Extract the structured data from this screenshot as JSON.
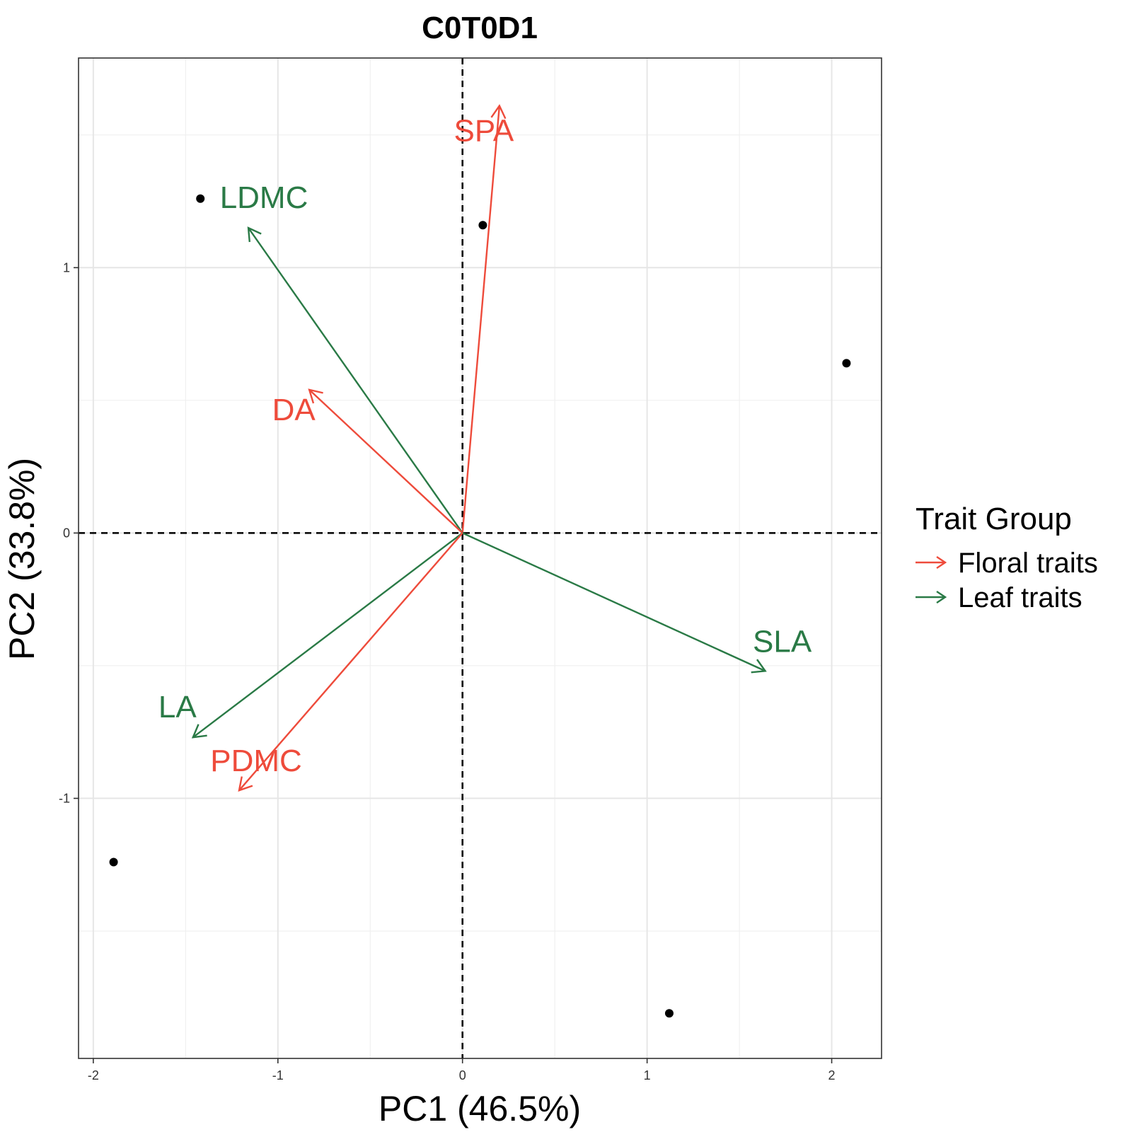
{
  "chart_data": {
    "type": "scatter",
    "title": "C0T0D1",
    "xlabel": "PC1 (46.5%)",
    "ylabel": "PC2 (33.8%)",
    "xlim": [
      -2.08,
      2.27
    ],
    "ylim": [
      -1.98,
      1.79
    ],
    "x_ticks": [
      -2,
      -1,
      0,
      1,
      2
    ],
    "y_ticks": [
      -1,
      0,
      1
    ],
    "x_tick_labels": [
      "-2",
      "-1",
      "0",
      "1",
      "2"
    ],
    "y_tick_labels": [
      "-1",
      "0",
      "1"
    ],
    "grid": true,
    "reference_lines": {
      "x": 0,
      "y": 0,
      "style": "dashed"
    },
    "points": [
      {
        "x": -1.42,
        "y": 1.26
      },
      {
        "x": 0.11,
        "y": 1.16
      },
      {
        "x": 2.08,
        "y": 0.64
      },
      {
        "x": -1.89,
        "y": -1.24
      },
      {
        "x": 1.12,
        "y": -1.81
      }
    ],
    "vectors": [
      {
        "label": "SPA",
        "group": "Floral traits",
        "x": 0.2,
        "y": 1.61
      },
      {
        "label": "LDMC",
        "group": "Leaf traits",
        "x": -1.16,
        "y": 1.15
      },
      {
        "label": "DA",
        "group": "Floral traits",
        "x": -0.83,
        "y": 0.54
      },
      {
        "label": "SLA",
        "group": "Leaf traits",
        "x": 1.64,
        "y": -0.52
      },
      {
        "label": "LA",
        "group": "Leaf traits",
        "x": -1.46,
        "y": -0.77
      },
      {
        "label": "PDMC",
        "group": "Floral traits",
        "x": -1.21,
        "y": -0.97
      }
    ],
    "legend": {
      "title": "Trait Group",
      "placement": "right",
      "entries": [
        {
          "name": "Floral traits",
          "color": "#ee4b3b"
        },
        {
          "name": "Leaf traits",
          "color": "#2a7a46"
        }
      ]
    },
    "point_color": "#000000"
  }
}
